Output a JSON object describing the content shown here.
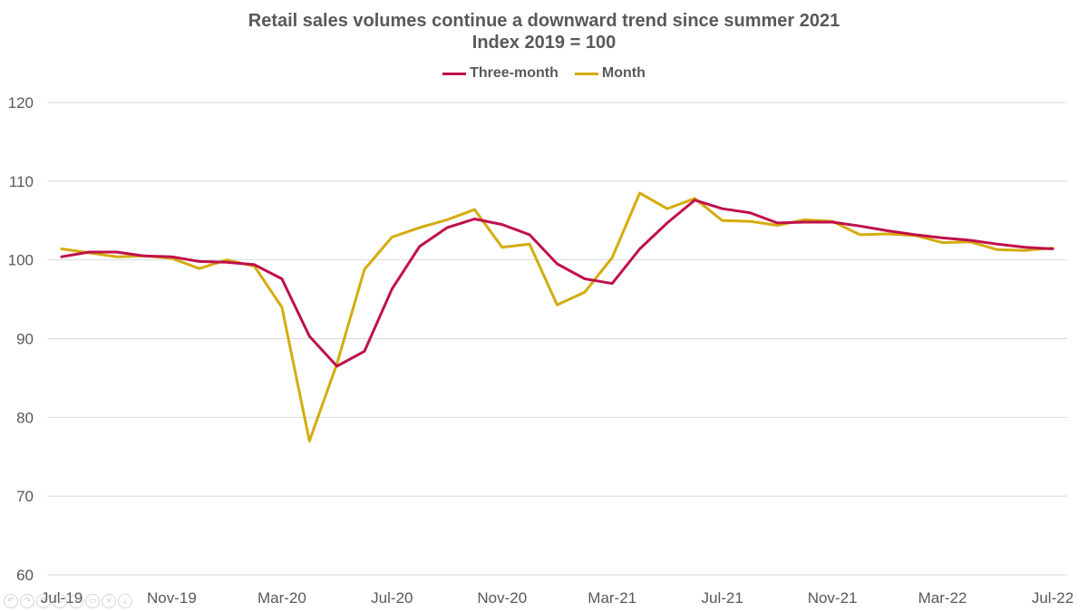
{
  "chart_data": {
    "type": "line",
    "title": "Retail sales volumes continue a downward trend since summer 2021",
    "subtitle": "Index 2019 = 100",
    "xlabel": "",
    "ylabel": "",
    "ylim": [
      60,
      120
    ],
    "yticks": [
      60,
      70,
      80,
      90,
      100,
      110,
      120
    ],
    "grid": true,
    "legend_position": "top-center",
    "categories": [
      "Jul-19",
      "Aug-19",
      "Sep-19",
      "Oct-19",
      "Nov-19",
      "Dec-19",
      "Jan-20",
      "Feb-20",
      "Mar-20",
      "Apr-20",
      "May-20",
      "Jun-20",
      "Jul-20",
      "Aug-20",
      "Sep-20",
      "Oct-20",
      "Nov-20",
      "Dec-20",
      "Jan-21",
      "Feb-21",
      "Mar-21",
      "Apr-21",
      "May-21",
      "Jun-21",
      "Jul-21",
      "Aug-21",
      "Sep-21",
      "Oct-21",
      "Nov-21",
      "Dec-21",
      "Jan-22",
      "Feb-22",
      "Mar-22",
      "Apr-22",
      "May-22",
      "Jun-22",
      "Jul-22"
    ],
    "xtick_labels": [
      "Jul-19",
      "Nov-19",
      "Mar-20",
      "Jul-20",
      "Nov-20",
      "Mar-21",
      "Jul-21",
      "Nov-21",
      "Mar-22",
      "Jul-22"
    ],
    "series": [
      {
        "name": "Three-month",
        "color": "#C0104A",
        "values": [
          100.4,
          101.0,
          101.0,
          100.5,
          100.4,
          99.8,
          99.7,
          99.4,
          97.6,
          90.3,
          86.5,
          88.4,
          96.3,
          101.7,
          104.1,
          105.2,
          104.5,
          103.2,
          99.5,
          97.6,
          97.0,
          101.4,
          104.7,
          107.6,
          106.5,
          106.0,
          104.7,
          104.8,
          104.8,
          104.3,
          103.7,
          103.2,
          102.8,
          102.5,
          102.0,
          101.6,
          101.4
        ]
      },
      {
        "name": "Month",
        "color": "#D4AC0D",
        "values": [
          101.4,
          100.9,
          100.4,
          100.5,
          100.2,
          98.9,
          100.0,
          99.2,
          94.0,
          77.0,
          86.8,
          98.8,
          102.9,
          104.1,
          105.1,
          106.4,
          101.6,
          102.0,
          94.3,
          95.9,
          100.3,
          108.5,
          106.5,
          107.8,
          105.0,
          104.9,
          104.4,
          105.1,
          104.9,
          103.2,
          103.3,
          103.1,
          102.2,
          102.3,
          101.3,
          101.2,
          101.5
        ]
      }
    ]
  },
  "toolbar": {
    "icons": [
      "undo-icon",
      "redo-icon",
      "copy-icon",
      "crop-icon",
      "zoom-icon",
      "image-icon",
      "close-icon",
      "save-icon"
    ]
  }
}
